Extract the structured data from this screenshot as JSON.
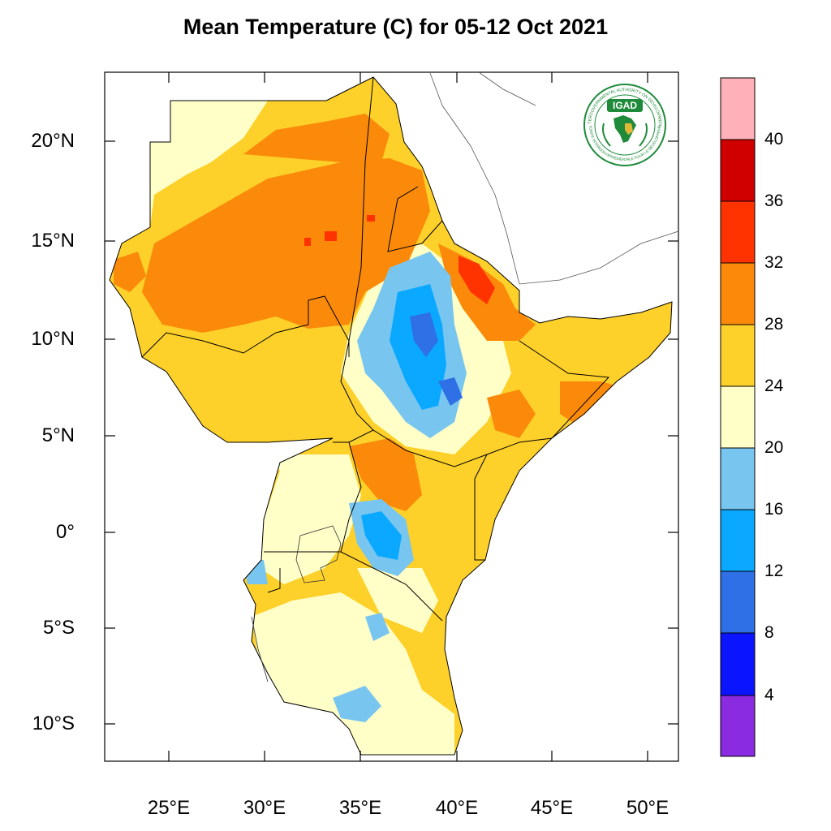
{
  "title": "Mean Temperature (C) for 05-12 Oct 2021",
  "lat_labels": [
    "20°N",
    "15°N",
    "10°N",
    "5°N",
    "0°",
    "5°S",
    "10°S"
  ],
  "lon_labels": [
    "25°E",
    "30°E",
    "35°E",
    "40°E",
    "45°E",
    "50°E"
  ],
  "colorbar": {
    "levels": [
      "4",
      "8",
      "12",
      "16",
      "20",
      "24",
      "28",
      "32",
      "36",
      "40"
    ],
    "colors": [
      "#8a2be2",
      "#0a14ff",
      "#2f70e6",
      "#0aa8ff",
      "#78c6f0",
      "#ffffc8",
      "#fdd02a",
      "#fb8a0a",
      "#ff3300",
      "#d00000",
      "#ffb0b8"
    ]
  },
  "logo": {
    "name": "IGAD",
    "ring_text_top": "INTERGOVERNMENTAL AUTHORITY ON DEVELOPMENT",
    "ring_text_bottom": "AUTORITE INTERGOUVERNEMENTALE POUR LE DEVELOPPEMENT"
  },
  "legend_colors": {
    "land_base": "#fdd02a",
    "hot": "#fb8a0a",
    "very_hot": "#ff3300",
    "cool": "#ffffc8",
    "cold": "#78c6f0",
    "colder": "#0aa8ff",
    "coldest": "#2f70e6"
  }
}
